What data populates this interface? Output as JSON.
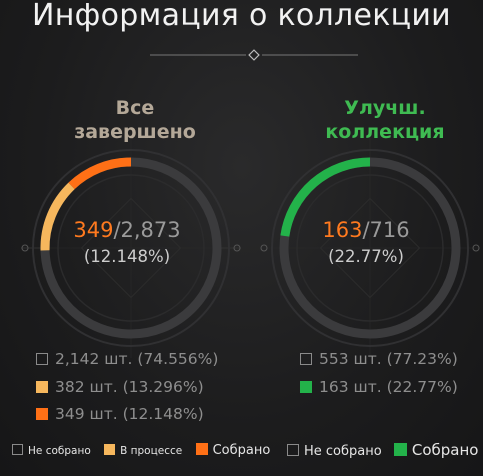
{
  "header": {
    "title": "Информация о коллекции"
  },
  "colors": {
    "collected": "#ff7016",
    "in_progress": "#f6b75d",
    "best_collected": "#23b24a",
    "ring_track": "#3d3d3f",
    "divider": "#8a8a8a"
  },
  "panels": [
    {
      "title_line1": "Все",
      "title_line2": "завершено",
      "collected": "349",
      "total": "/2,873",
      "percent": "(12.148%)",
      "collected_fraction": 0.12148,
      "in_progress_fraction": 0.13296,
      "stats": [
        {
          "text": "2,142 шт. (74.556%)",
          "icon": "empty-square-icon"
        },
        {
          "text": "382 шт. (13.296%)",
          "icon": "in-progress-square-icon"
        },
        {
          "text": "349 шт. (12.148%)",
          "icon": "collected-square-icon"
        }
      ],
      "legend": [
        {
          "text": "Не собрано",
          "icon": "empty-square-icon"
        },
        {
          "text": "В процессе",
          "icon": "in-progress-square-icon"
        },
        {
          "text": "Собрано",
          "icon": "collected-square-icon"
        }
      ]
    },
    {
      "title_line1": "Улучш.",
      "title_line2": "коллекция",
      "collected": "163",
      "total": "/716",
      "percent": "(22.77%)",
      "collected_fraction": 0.2277,
      "stats": [
        {
          "text": "553 шт. (77.23%)",
          "icon": "empty-square-icon"
        },
        {
          "text": "163 шт. (22.77%)",
          "icon": "green-square-icon"
        }
      ],
      "legend": [
        {
          "text": "Не собрано",
          "icon": "empty-square-icon"
        },
        {
          "text": "Собрано",
          "icon": "green-square-icon"
        }
      ]
    }
  ]
}
